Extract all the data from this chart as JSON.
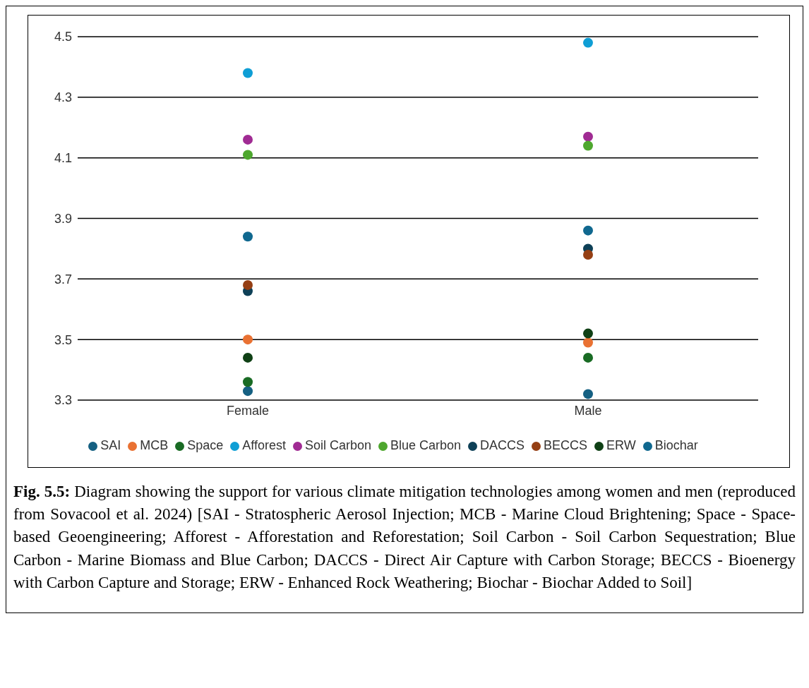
{
  "chart_data": {
    "type": "scatter",
    "categories": [
      "Female",
      "Male"
    ],
    "series": [
      {
        "name": "SAI",
        "color": "#156082",
        "values": [
          3.33,
          3.32
        ]
      },
      {
        "name": "MCB",
        "color": "#e97132",
        "values": [
          3.5,
          3.49
        ]
      },
      {
        "name": "Space",
        "color": "#196b24",
        "values": [
          3.36,
          3.44
        ]
      },
      {
        "name": "Afforest",
        "color": "#0f9ed5",
        "values": [
          4.38,
          4.48
        ]
      },
      {
        "name": "Soil Carbon",
        "color": "#a02b93",
        "values": [
          4.16,
          4.17
        ]
      },
      {
        "name": "Blue Carbon",
        "color": "#4ea72e",
        "values": [
          4.11,
          4.14
        ]
      },
      {
        "name": "DACCS",
        "color": "#0e4057",
        "values": [
          3.66,
          3.8
        ]
      },
      {
        "name": "BECCS",
        "color": "#953f14",
        "values": [
          3.68,
          3.78
        ]
      },
      {
        "name": "ERW",
        "color": "#0f4015",
        "values": [
          3.44,
          3.52
        ]
      },
      {
        "name": "Biochar",
        "color": "#10688f",
        "values": [
          3.84,
          3.86
        ]
      }
    ],
    "ylim": [
      3.3,
      4.5
    ],
    "yticks": [
      {
        "value": 3.3,
        "label": "3.3"
      },
      {
        "value": 3.5,
        "label": "3.5"
      },
      {
        "value": 3.7,
        "label": "3.7"
      },
      {
        "value": 3.9,
        "label": "3.9"
      },
      {
        "value": 4.1,
        "label": "4.1"
      },
      {
        "value": 4.3,
        "label": "4.3"
      },
      {
        "value": 4.5,
        "label": "4.5"
      }
    ],
    "grid": "y",
    "legend": "bottom",
    "marker": "circle",
    "annotations": [
      "Fig. 5.5: Diagram showing the support for various climate mitigation technologies among women and men (reproduced from Sovacool et al. 2024) [SAI - Stratospheric Aerosol Injection; MCB - Marine Cloud Brightening; Space - Space-based Geoengineering; Afforest - Afforestation and Reforestation; Soil Carbon - Soil Carbon Sequestration; Blue Carbon - Marine Biomass and Blue Carbon; DACCS - Direct Air Capture with Carbon Storage; BECCS - Bioenergy with Carbon Capture and Storage; ERW - Enhanced Rock Weathering; Biochar - Biochar Added to Soil]"
    ]
  }
}
